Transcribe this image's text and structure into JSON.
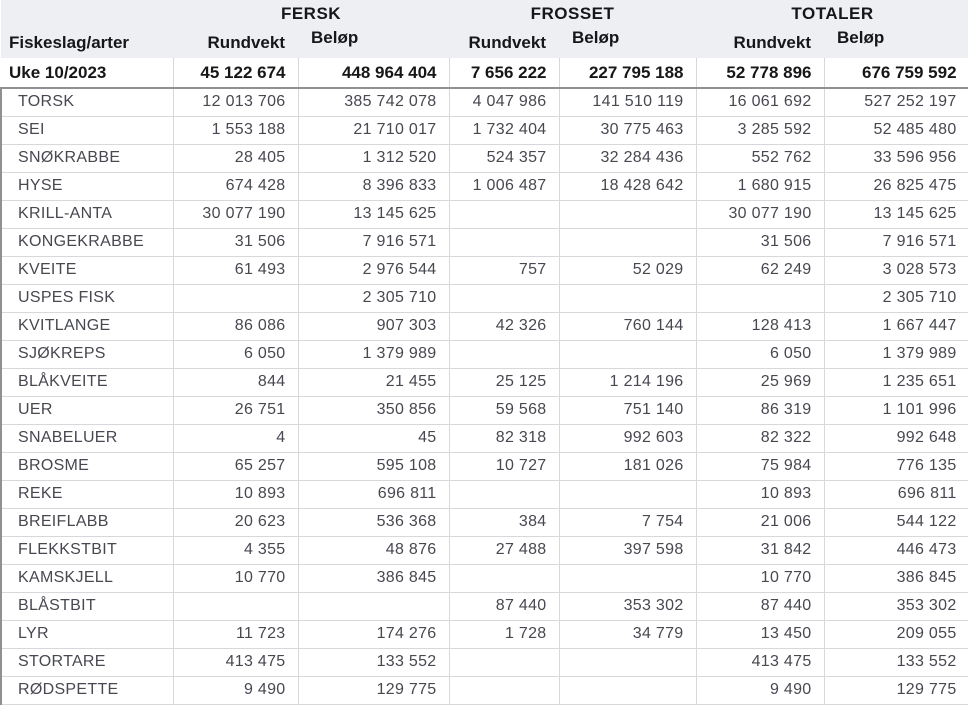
{
  "table": {
    "first_col_header": "Fiskeslag/arter",
    "groups": [
      {
        "label": "FERSK"
      },
      {
        "label": "FROSSET"
      },
      {
        "label": "TOTALER"
      }
    ],
    "sub_headers": [
      "Rundvekt",
      "Beløp"
    ],
    "summary_row": {
      "label": "Uke 10/2023",
      "values": [
        "45 122 674",
        "448 964 404",
        "7 656 222",
        "227 795 188",
        "52 778 896",
        "676 759 592"
      ]
    },
    "rows": [
      {
        "species": "TORSK",
        "values": [
          "12 013 706",
          "385 742 078",
          "4 047 986",
          "141 510 119",
          "16 061 692",
          "527 252 197"
        ]
      },
      {
        "species": "SEI",
        "values": [
          "1 553 188",
          "21 710 017",
          "1 732 404",
          "30 775 463",
          "3 285 592",
          "52 485 480"
        ]
      },
      {
        "species": "SNØKRABBE",
        "values": [
          "28 405",
          "1 312 520",
          "524 357",
          "32 284 436",
          "552 762",
          "33 596 956"
        ]
      },
      {
        "species": "HYSE",
        "values": [
          "674 428",
          "8 396 833",
          "1 006 487",
          "18 428 642",
          "1 680 915",
          "26 825 475"
        ]
      },
      {
        "species": "KRILL-ANTA",
        "values": [
          "30 077 190",
          "13 145 625",
          "",
          "",
          "30 077 190",
          "13 145 625"
        ]
      },
      {
        "species": "KONGEKRABBE",
        "values": [
          "31 506",
          "7 916 571",
          "",
          "",
          "31 506",
          "7 916 571"
        ]
      },
      {
        "species": "KVEITE",
        "values": [
          "61 493",
          "2 976 544",
          "757",
          "52 029",
          "62 249",
          "3 028 573"
        ]
      },
      {
        "species": "USPES FISK",
        "values": [
          "",
          "2 305 710",
          "",
          "",
          "",
          "2 305 710"
        ]
      },
      {
        "species": "KVITLANGE",
        "values": [
          "86 086",
          "907 303",
          "42 326",
          "760 144",
          "128 413",
          "1 667 447"
        ]
      },
      {
        "species": "SJØKREPS",
        "values": [
          "6 050",
          "1 379 989",
          "",
          "",
          "6 050",
          "1 379 989"
        ]
      },
      {
        "species": "BLÅKVEITE",
        "values": [
          "844",
          "21 455",
          "25 125",
          "1 214 196",
          "25 969",
          "1 235 651"
        ]
      },
      {
        "species": "UER",
        "values": [
          "26 751",
          "350 856",
          "59 568",
          "751 140",
          "86 319",
          "1 101 996"
        ]
      },
      {
        "species": "SNABELUER",
        "values": [
          "4",
          "45",
          "82 318",
          "992 603",
          "82 322",
          "992 648"
        ]
      },
      {
        "species": "BROSME",
        "values": [
          "65 257",
          "595 108",
          "10 727",
          "181 026",
          "75 984",
          "776 135"
        ]
      },
      {
        "species": "REKE",
        "values": [
          "10 893",
          "696 811",
          "",
          "",
          "10 893",
          "696 811"
        ]
      },
      {
        "species": "BREIFLABB",
        "values": [
          "20 623",
          "536 368",
          "384",
          "7 754",
          "21 006",
          "544 122"
        ]
      },
      {
        "species": "FLEKKSTBIT",
        "values": [
          "4 355",
          "48 876",
          "27 488",
          "397 598",
          "31 842",
          "446 473"
        ]
      },
      {
        "species": "KAMSKJELL",
        "values": [
          "10 770",
          "386 845",
          "",
          "",
          "10 770",
          "386 845"
        ]
      },
      {
        "species": "BLÅSTBIT",
        "values": [
          "",
          "",
          "87 440",
          "353 302",
          "87 440",
          "353 302"
        ]
      },
      {
        "species": "LYR",
        "values": [
          "11 723",
          "174 276",
          "1 728",
          "34 779",
          "13 450",
          "209 055"
        ]
      },
      {
        "species": "STORTARE",
        "values": [
          "413 475",
          "133 552",
          "",
          "",
          "413 475",
          "133 552"
        ]
      },
      {
        "species": "RØDSPETTE",
        "values": [
          "9 490",
          "129 775",
          "",
          "",
          "9 490",
          "129 775"
        ]
      }
    ]
  },
  "colors": {
    "header_bg": "#edeff3",
    "border_light": "#d7d8da",
    "border_strong": "#8f9092",
    "text_strong": "#17171a",
    "text_data": "#474850"
  }
}
